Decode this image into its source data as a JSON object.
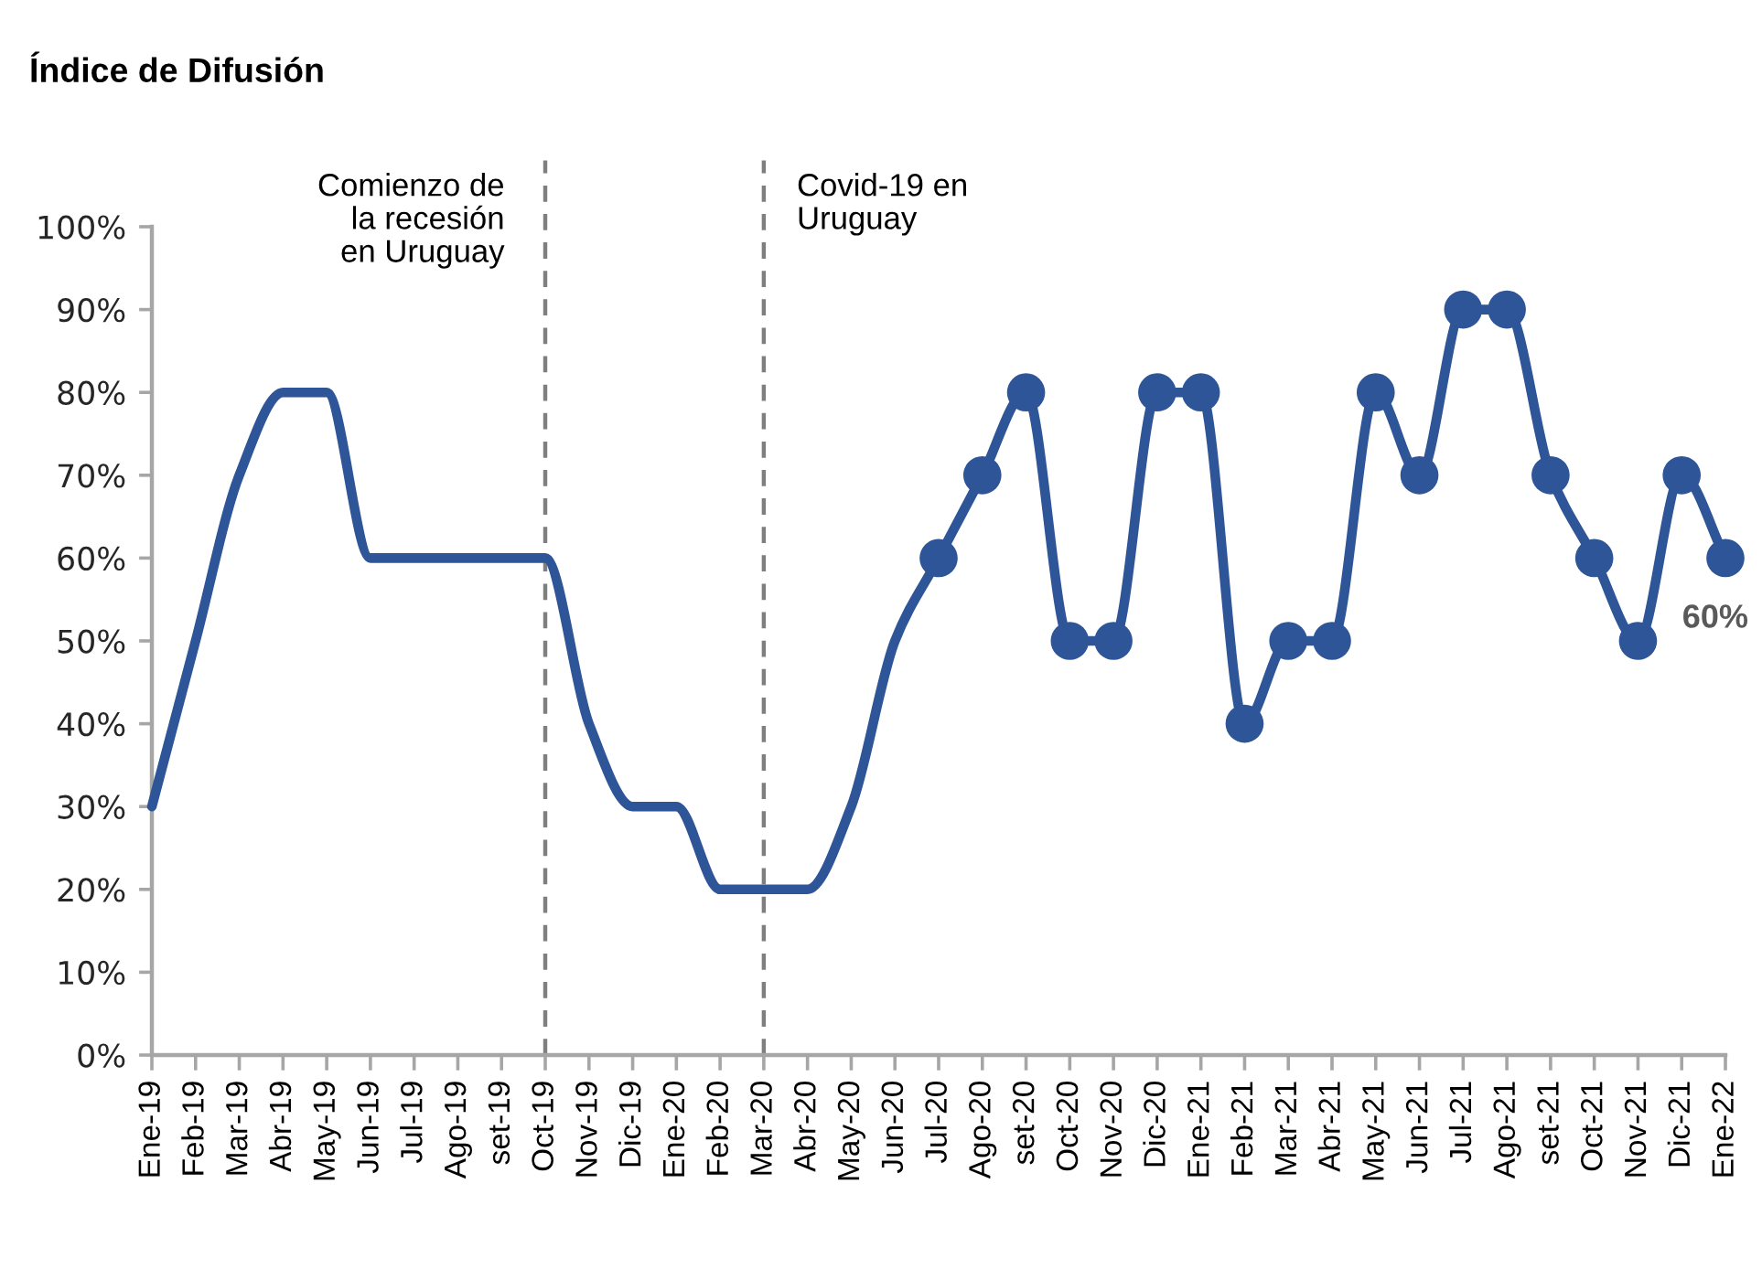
{
  "chart_data": {
    "type": "line",
    "title": "Índice de Difusión",
    "categories": [
      "Ene-19",
      "Feb-19",
      "Mar-19",
      "Abr-19",
      "May-19",
      "Jun-19",
      "Jul-19",
      "Ago-19",
      "set-19",
      "Oct-19",
      "Nov-19",
      "Dic-19",
      "Ene-20",
      "Feb-20",
      "Mar-20",
      "Abr-20",
      "May-20",
      "Jun-20",
      "Jul-20",
      "Ago-20",
      "set-20",
      "Oct-20",
      "Nov-20",
      "Dic-20",
      "Ene-21",
      "Feb-21",
      "Mar-21",
      "Abr-21",
      "May-21",
      "Jun-21",
      "Jul-21",
      "Ago-21",
      "set-21",
      "Oct-21",
      "Nov-21",
      "Dic-21",
      "Ene-22"
    ],
    "series": [
      {
        "type": "line",
        "color": "#2e5597",
        "marker": "none",
        "line_style": "solid",
        "values": [
          30,
          50,
          70,
          80,
          80,
          60,
          60,
          60,
          60,
          60,
          40,
          30,
          30,
          20,
          20,
          20,
          30,
          50,
          60,
          70,
          80,
          50,
          50,
          80,
          80,
          40,
          50,
          50,
          80,
          70,
          90,
          90,
          70,
          60,
          50,
          70,
          60
        ]
      },
      {
        "type": "scatter",
        "color": "#2e5597",
        "marker": "circle",
        "values": [
          null,
          null,
          null,
          null,
          null,
          null,
          null,
          null,
          null,
          null,
          null,
          null,
          null,
          null,
          null,
          null,
          null,
          null,
          60,
          70,
          80,
          50,
          50,
          80,
          80,
          40,
          50,
          50,
          80,
          70,
          90,
          90,
          70,
          60,
          50,
          70,
          60
        ],
        "value_labels": [
          null,
          null,
          null,
          null,
          null,
          null,
          null,
          null,
          null,
          null,
          null,
          null,
          null,
          null,
          null,
          null,
          null,
          null,
          null,
          null,
          null,
          null,
          null,
          null,
          null,
          null,
          null,
          null,
          null,
          null,
          null,
          null,
          null,
          null,
          null,
          null,
          "60%"
        ]
      }
    ],
    "ylim": [
      0,
      100
    ],
    "yticks": [
      {
        "value": 0,
        "label": "0%"
      },
      {
        "value": 10,
        "label": "10%"
      },
      {
        "value": 20,
        "label": "20%"
      },
      {
        "value": 30,
        "label": "30%"
      },
      {
        "value": 40,
        "label": "40%"
      },
      {
        "value": 50,
        "label": "50%"
      },
      {
        "value": 60,
        "label": "60%"
      },
      {
        "value": 70,
        "label": "70%"
      },
      {
        "value": 80,
        "label": "80%"
      },
      {
        "value": 90,
        "label": "90%"
      },
      {
        "value": 100,
        "label": "100%"
      }
    ],
    "ref_lines": [
      {
        "axis": "x",
        "value": "Oct-19",
        "label": "Comienzo de\nla recesión\nen Uruguay",
        "color": "#7f7f7f",
        "line_style": "dashed"
      },
      {
        "axis": "x",
        "value": "Mar-20",
        "label": "Covid-19 en\nUruguay",
        "color": "#7f7f7f",
        "line_style": "dashed"
      }
    ],
    "grid": false
  }
}
